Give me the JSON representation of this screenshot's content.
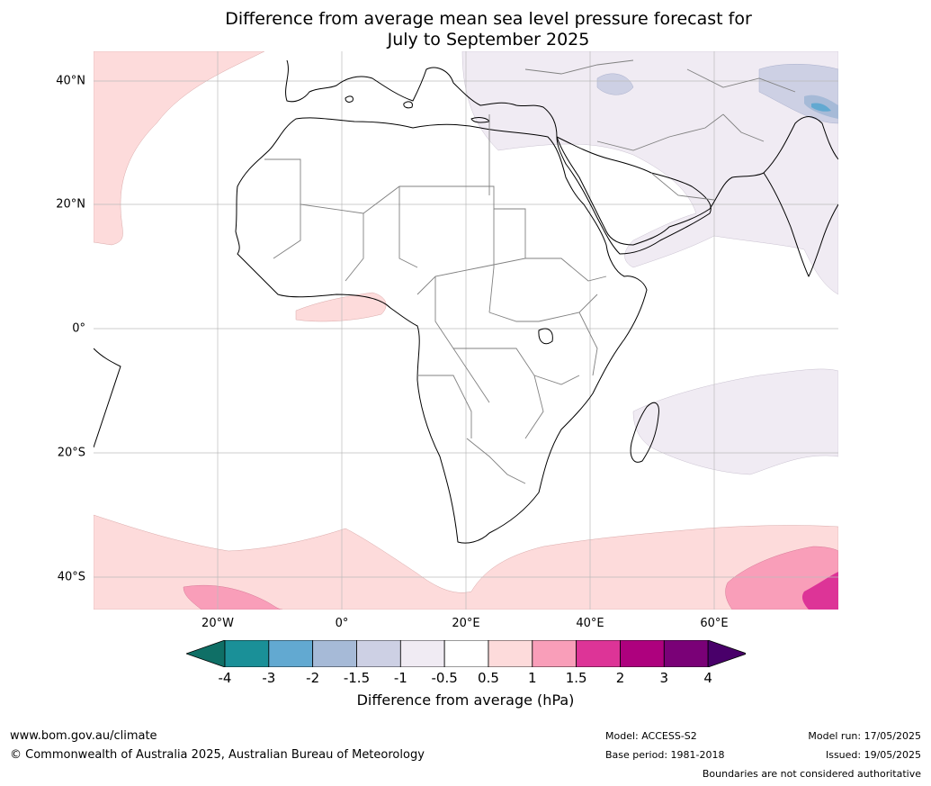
{
  "title_line1": "Difference from average mean sea level pressure forecast for",
  "title_line2": "July to September 2025",
  "latitudes": [
    "40°N",
    "20°N",
    "0°",
    "20°S",
    "40°S"
  ],
  "longitudes": [
    "20°W",
    "0°",
    "20°E",
    "40°E",
    "60°E"
  ],
  "colorbar": {
    "title": "Difference from average (hPa)",
    "ticks": [
      "-4",
      "-3",
      "-2",
      "-1.5",
      "-1",
      "-0.5",
      "0.5",
      "1",
      "1.5",
      "2",
      "3",
      "4"
    ],
    "colors": [
      "#0f6f66",
      "#1a9098",
      "#62a9d1",
      "#a6bad7",
      "#cdd0e4",
      "#f0ebf3",
      "#ffffff",
      "#fddbdb",
      "#f99eb9",
      "#dd3497",
      "#ae017e",
      "#7a0177",
      "#49006a"
    ]
  },
  "footer": {
    "url": "www.bom.gov.au/climate",
    "copyright": "© Commonwealth of Australia 2025, Australian Bureau of Meteorology",
    "model": "Model: ACCESS-S2",
    "base_period": "Base period: 1981-2018",
    "model_run": "Model run: 17/05/2025",
    "issued": "Issued: 19/05/2025",
    "disclaimer": "Boundaries are not considered authoritative"
  }
}
